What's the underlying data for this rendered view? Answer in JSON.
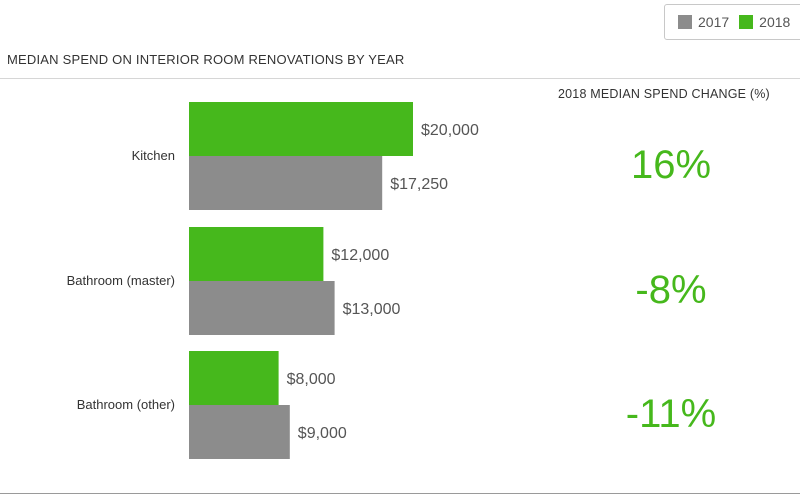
{
  "legend": {
    "items": [
      {
        "label": "2017",
        "color": "#8c8c8c"
      },
      {
        "label": "2018",
        "color": "#46b81c"
      }
    ]
  },
  "change_header": "2018 MEDIAN SPEND CHANGE (%)",
  "change_color": "#46b81c",
  "chart_data": {
    "type": "bar",
    "orientation": "horizontal",
    "title": "MEDIAN SPEND ON INTERIOR ROOM RENOVATIONS BY YEAR",
    "categories": [
      "Kitchen",
      "Bathroom (master)",
      "Bathroom (other)"
    ],
    "series": [
      {
        "name": "2018",
        "color": "#46b81c",
        "values": [
          20000,
          12000,
          8000
        ],
        "labels": [
          "$20,000",
          "$12,000",
          "$8,000"
        ]
      },
      {
        "name": "2017",
        "color": "#8c8c8c",
        "values": [
          17250,
          13000,
          9000
        ],
        "labels": [
          "$17,250",
          "$13,000",
          "$9,000"
        ]
      }
    ],
    "changes": [
      "16%",
      "-8%",
      "-11%"
    ],
    "xlim": [
      0,
      20000
    ],
    "grid": false,
    "legend_position": "top-right"
  }
}
